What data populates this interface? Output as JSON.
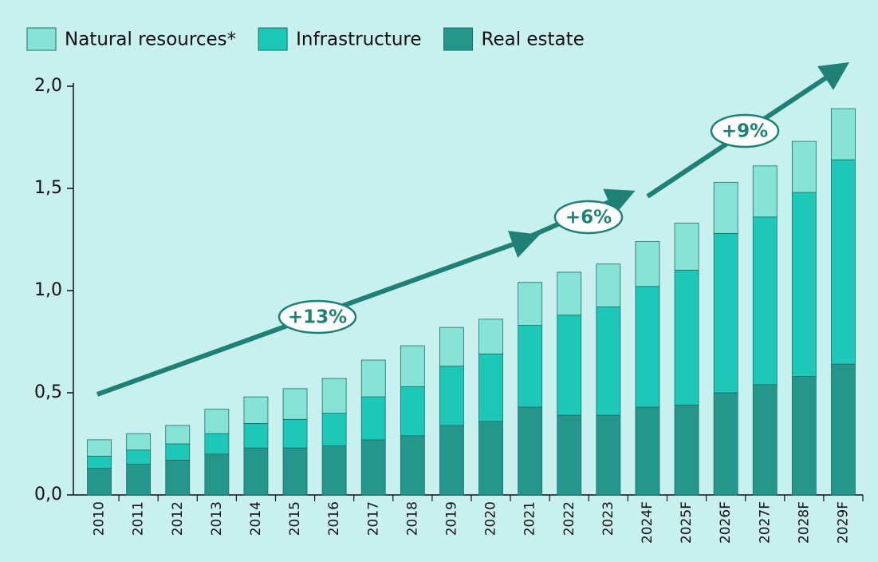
{
  "chart_data": {
    "type": "stacked-bar",
    "categories": [
      "2010",
      "2011",
      "2012",
      "2013",
      "2014",
      "2015",
      "2016",
      "2017",
      "2018",
      "2019",
      "2020",
      "2021",
      "2022",
      "2023",
      "2024F",
      "2025F",
      "2026F",
      "2027F",
      "2028F",
      "2029F"
    ],
    "series": [
      {
        "name": "Real estate",
        "color": "#24968c",
        "values": [
          0.13,
          0.15,
          0.17,
          0.2,
          0.23,
          0.23,
          0.24,
          0.27,
          0.29,
          0.34,
          0.36,
          0.43,
          0.39,
          0.39,
          0.43,
          0.44,
          0.5,
          0.54,
          0.58,
          0.64
        ]
      },
      {
        "name": "Infrastructure",
        "color": "#1dc8b8",
        "values": [
          0.06,
          0.07,
          0.08,
          0.1,
          0.12,
          0.14,
          0.16,
          0.21,
          0.24,
          0.29,
          0.33,
          0.4,
          0.49,
          0.53,
          0.59,
          0.66,
          0.78,
          0.82,
          0.9,
          1.0
        ]
      },
      {
        "name": "Natural resources*",
        "color": "#86e3d5",
        "values": [
          0.08,
          0.08,
          0.09,
          0.12,
          0.13,
          0.15,
          0.17,
          0.18,
          0.2,
          0.19,
          0.17,
          0.21,
          0.21,
          0.21,
          0.22,
          0.23,
          0.25,
          0.25,
          0.25,
          0.25
        ]
      }
    ],
    "ylim": [
      0,
      2.0
    ],
    "yticks": [
      {
        "value": 0,
        "label": "0,0"
      },
      {
        "value": 0.5,
        "label": "0,5"
      },
      {
        "value": 1.0,
        "label": "1,0"
      },
      {
        "value": 1.5,
        "label": "1,5"
      },
      {
        "value": 2.0,
        "label": "2,0"
      }
    ],
    "annotations": [
      "+13%",
      "+6%",
      "+9%"
    ]
  }
}
